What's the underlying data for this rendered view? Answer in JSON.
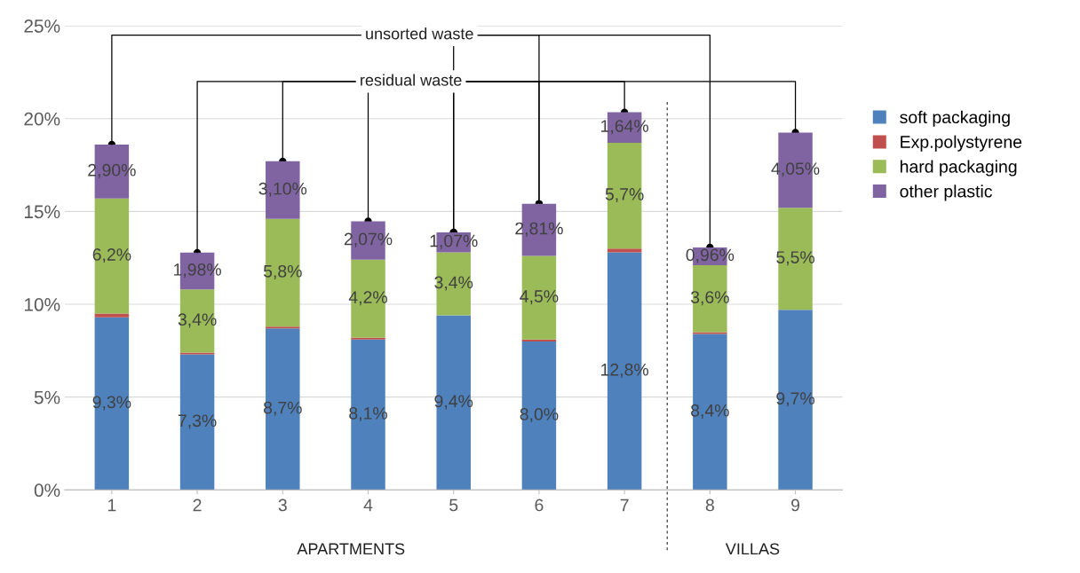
{
  "chart_data": {
    "type": "bar",
    "stacked": true,
    "categories": [
      "1",
      "2",
      "3",
      "4",
      "5",
      "6",
      "7",
      "8",
      "9"
    ],
    "series": [
      {
        "name": "soft packaging",
        "color": "#4f81bd",
        "values": [
          9.3,
          7.3,
          8.7,
          8.1,
          9.4,
          8.0,
          12.8,
          8.4,
          9.7
        ],
        "value_labels": [
          "9,3%",
          "7,3%",
          "8,7%",
          "8,1%",
          "9,4%",
          "8,0%",
          "12,8%",
          "8,4%",
          "9,7%"
        ]
      },
      {
        "name": "Exp.polystyrene",
        "color": "#c0504d",
        "values": [
          0.2,
          0.1,
          0.1,
          0.1,
          0,
          0.1,
          0.2,
          0.1,
          0
        ]
      },
      {
        "name": "hard packaging",
        "color": "#9bbb59",
        "values": [
          6.2,
          3.4,
          5.8,
          4.2,
          3.4,
          4.5,
          5.7,
          3.6,
          5.5
        ],
        "value_labels": [
          "6,2%",
          "3,4%",
          "5,8%",
          "4,2%",
          "3,4%",
          "4,5%",
          "5,7%",
          "3,6%",
          "5,5%"
        ]
      },
      {
        "name": "other plastic",
        "color": "#8064a2",
        "values": [
          2.9,
          1.98,
          3.1,
          2.07,
          1.07,
          2.81,
          1.64,
          0.96,
          4.05
        ],
        "value_labels": [
          "2,90%",
          "1,98%",
          "3,10%",
          "2,07%",
          "1,07%",
          "2,81%",
          "1,64%",
          "0,96%",
          "4,05%"
        ]
      }
    ],
    "ylim": [
      0,
      25
    ],
    "yticks": [
      {
        "value": 0,
        "label": "0%"
      },
      {
        "value": 5,
        "label": "5%"
      },
      {
        "value": 10,
        "label": "10%"
      },
      {
        "value": 15,
        "label": "15%"
      },
      {
        "value": 20,
        "label": "20%"
      },
      {
        "value": 25,
        "label": "25%"
      }
    ],
    "grid": "y",
    "legend": "right",
    "annotations": [
      {
        "text": "unsorted waste",
        "x": "1",
        "y": 18.6
      },
      {
        "text": "residual waste",
        "x": "2",
        "y": 12.78
      },
      "APARTMENTS",
      "VILLAS"
    ]
  }
}
